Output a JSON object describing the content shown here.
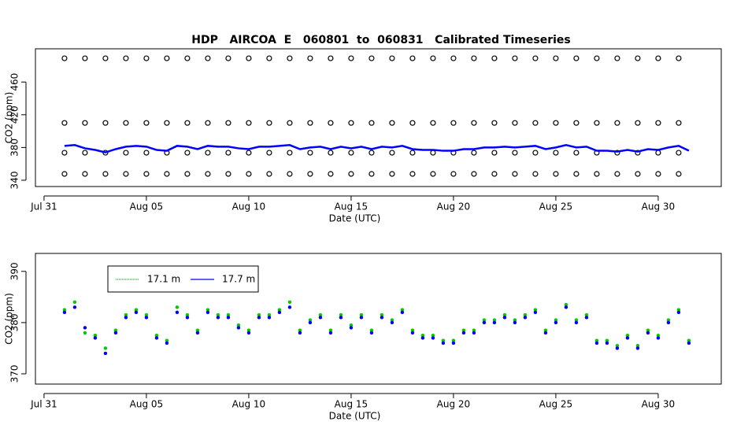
{
  "chart_data": [
    {
      "type": "scatter",
      "title": "HDP   AIRCOA  E   060801  to  060831   Calibrated Timeseries",
      "x_label": "Date (UTC)",
      "y_label": "CO2 (ppm)",
      "xlim": [
        -0.42,
        33.08
      ],
      "ylim": [
        332.3,
        500.6
      ],
      "xticks": [
        {
          "value": 0,
          "label": "Jul 31"
        },
        {
          "value": 5,
          "label": "Aug 05"
        },
        {
          "value": 10,
          "label": "Aug 10"
        },
        {
          "value": 15,
          "label": "Aug 15"
        },
        {
          "value": 20,
          "label": "Aug 20"
        },
        {
          "value": 25,
          "label": "Aug 25"
        },
        {
          "value": 30,
          "label": "Aug 30"
        }
      ],
      "yticks": [
        340,
        380,
        420,
        460
      ],
      "x": [
        1,
        1.5,
        2,
        2.5,
        3,
        3.5,
        4,
        4.5,
        5,
        5.5,
        6,
        6.5,
        7,
        7.5,
        8,
        8.5,
        9,
        9.5,
        10,
        10.5,
        11,
        11.5,
        12,
        12.5,
        13,
        13.5,
        14,
        14.5,
        15,
        15.5,
        16,
        16.5,
        17,
        17.5,
        18,
        18.5,
        19,
        19.5,
        20,
        20.5,
        21,
        21.5,
        22,
        22.5,
        23,
        23.5,
        24,
        24.5,
        25,
        25.5,
        26,
        26.5,
        27,
        27.5,
        28,
        28.5,
        29,
        29.5,
        30,
        30.5,
        31,
        31.5
      ],
      "series": [
        {
          "color": "#000000",
          "style": "circle",
          "x": [
            1,
            2,
            3,
            4,
            5,
            6,
            7,
            8,
            9,
            10,
            11,
            12,
            13,
            14,
            15,
            16,
            17,
            18,
            19,
            20,
            21,
            22,
            23,
            24,
            25,
            26,
            27,
            28,
            29,
            30,
            31
          ],
          "values": [
            489,
            489,
            489,
            489,
            489,
            489,
            489,
            489,
            489,
            489,
            489,
            489,
            489,
            489,
            489,
            489,
            489,
            489,
            489,
            489,
            489,
            489,
            489,
            489,
            489,
            489,
            489,
            489,
            489,
            489,
            489
          ]
        },
        {
          "color": "#000000",
          "style": "circle",
          "x": [
            1,
            2,
            3,
            4,
            5,
            6,
            7,
            8,
            9,
            10,
            11,
            12,
            13,
            14,
            15,
            16,
            17,
            18,
            19,
            20,
            21,
            22,
            23,
            24,
            25,
            26,
            27,
            28,
            29,
            30,
            31
          ],
          "values": [
            410,
            410,
            410,
            410,
            410,
            410,
            410,
            410,
            410,
            410,
            410,
            410,
            410,
            410,
            410,
            410,
            410,
            410,
            410,
            410,
            410,
            410,
            410,
            410,
            410,
            410,
            410,
            410,
            410,
            410,
            410
          ]
        },
        {
          "color": "#000000",
          "style": "circle",
          "x": [
            1,
            2,
            3,
            4,
            5,
            6,
            7,
            8,
            9,
            10,
            11,
            12,
            13,
            14,
            15,
            16,
            17,
            18,
            19,
            20,
            21,
            22,
            23,
            24,
            25,
            26,
            27,
            28,
            29,
            30,
            31
          ],
          "values": [
            373.6,
            373.6,
            373.6,
            373.6,
            373.6,
            373.6,
            373.6,
            373.6,
            373.6,
            373.6,
            373.6,
            373.6,
            373.6,
            373.6,
            373.6,
            373.6,
            373.6,
            373.6,
            373.6,
            373.6,
            373.6,
            373.6,
            373.6,
            373.6,
            373.6,
            373.6,
            373.6,
            373.6,
            373.6,
            373.6,
            373.6
          ]
        },
        {
          "color": "#000000",
          "style": "circle",
          "x": [
            1,
            2,
            3,
            4,
            5,
            6,
            7,
            8,
            9,
            10,
            11,
            12,
            13,
            14,
            15,
            16,
            17,
            18,
            19,
            20,
            21,
            22,
            23,
            24,
            25,
            26,
            27,
            28,
            29,
            30,
            31
          ],
          "values": [
            347.7,
            347.7,
            347.7,
            347.7,
            347.7,
            347.7,
            347.7,
            347.7,
            347.7,
            347.7,
            347.7,
            347.7,
            347.7,
            347.7,
            347.7,
            347.7,
            347.7,
            347.7,
            347.7,
            347.7,
            347.7,
            347.7,
            347.7,
            347.7,
            347.7,
            347.7,
            347.7,
            347.7,
            347.7,
            347.7,
            347.7
          ]
        },
        {
          "color": "#0000ff",
          "style": "line",
          "values": [
            382,
            383,
            379,
            377,
            374,
            378,
            381,
            382,
            381,
            377,
            376,
            382,
            381,
            378,
            382,
            381,
            381,
            379,
            378,
            381,
            381,
            382,
            383,
            378,
            380,
            381,
            378,
            381,
            379,
            381,
            378,
            381,
            380,
            382,
            378,
            377,
            377,
            376,
            376,
            378,
            378,
            380,
            380,
            381,
            380,
            381,
            382,
            378,
            380,
            383,
            380,
            381,
            376,
            376,
            375,
            377,
            375,
            378,
            377,
            380,
            382,
            376
          ]
        }
      ]
    },
    {
      "type": "scatter",
      "x_label": "Date (UTC)",
      "y_label": "CO2 (ppm)",
      "xlim": [
        -0.42,
        33.08
      ],
      "ylim": [
        368,
        393.5
      ],
      "xticks": [
        {
          "value": 0,
          "label": "Jul 31"
        },
        {
          "value": 5,
          "label": "Aug 05"
        },
        {
          "value": 10,
          "label": "Aug 10"
        },
        {
          "value": 15,
          "label": "Aug 15"
        },
        {
          "value": 20,
          "label": "Aug 20"
        },
        {
          "value": 25,
          "label": "Aug 25"
        },
        {
          "value": 30,
          "label": "Aug 30"
        }
      ],
      "yticks": [
        370,
        380,
        390
      ],
      "legend": "top-left",
      "x": [
        1,
        1.5,
        2,
        2.5,
        3,
        3.5,
        4,
        4.5,
        5,
        5.5,
        6,
        6.5,
        7,
        7.5,
        8,
        8.5,
        9,
        9.5,
        10,
        10.5,
        11,
        11.5,
        12,
        12.5,
        13,
        13.5,
        14,
        14.5,
        15,
        15.5,
        16,
        16.5,
        17,
        17.5,
        18,
        18.5,
        19,
        19.5,
        20,
        20.5,
        21,
        21.5,
        22,
        22.5,
        23,
        23.5,
        24,
        24.5,
        25,
        25.5,
        26,
        26.5,
        27,
        27.5,
        28,
        28.5,
        29,
        29.5,
        30,
        30.5,
        31,
        31.5
      ],
      "series": [
        {
          "name": "17.1 m",
          "color": "#00cc00",
          "values": [
            382.5,
            384,
            378,
            377.5,
            375,
            378.5,
            381.5,
            382.5,
            381.5,
            377.5,
            376.5,
            383,
            381.5,
            378.5,
            382.5,
            381.5,
            381.5,
            379.5,
            378.5,
            381.5,
            381.5,
            382.5,
            384,
            378.5,
            380.5,
            381.5,
            378.5,
            381.5,
            379.5,
            381.5,
            378.5,
            381.5,
            380.5,
            382.5,
            378.5,
            377.5,
            377.5,
            376.5,
            376.5,
            378.5,
            378.5,
            380.5,
            380.5,
            381.5,
            380.5,
            381.5,
            382.5,
            378.5,
            380.5,
            383.5,
            380.5,
            381.5,
            376.5,
            376.5,
            375.5,
            377.5,
            375.5,
            378.5,
            377.5,
            380.5,
            382.5,
            376.5
          ]
        },
        {
          "name": "17.7 m",
          "color": "#0000ff",
          "values": [
            382,
            383,
            379,
            377,
            374,
            378,
            381,
            382,
            381,
            377,
            376,
            382,
            381,
            378,
            382,
            381,
            381,
            379,
            378,
            381,
            381,
            382,
            383,
            378,
            380,
            381,
            378,
            381,
            379,
            381,
            378,
            381,
            380,
            382,
            378,
            377,
            377,
            376,
            376,
            378,
            378,
            380,
            380,
            381,
            380,
            381,
            382,
            378,
            380,
            383,
            380,
            381,
            376,
            376,
            375,
            377,
            375,
            378,
            377,
            380,
            382,
            376
          ]
        }
      ]
    }
  ]
}
